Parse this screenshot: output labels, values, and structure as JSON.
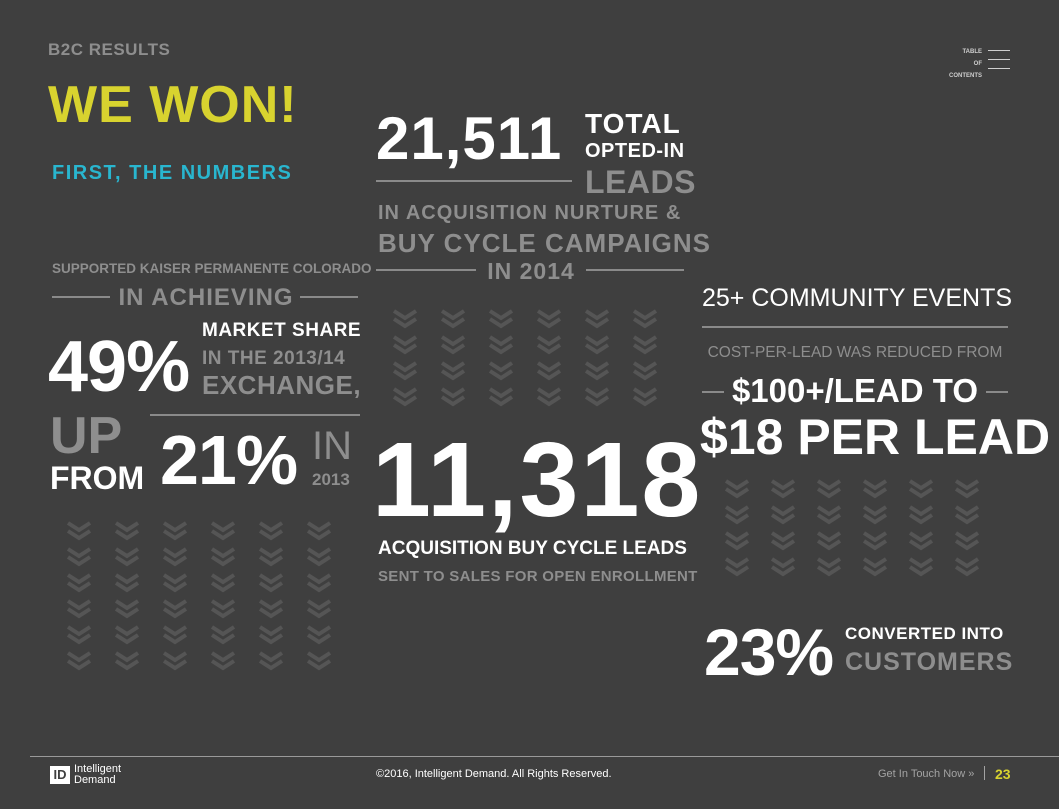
{
  "header": {
    "section": "B2C RESULTS",
    "title": "WE WON!",
    "subtitle": "FIRST, THE NUMBERS"
  },
  "toc": {
    "line1": "TABLE",
    "line2": "OF",
    "line3": "CONTENTS",
    "icon": "menu-lines-icon"
  },
  "left": {
    "supported": "SUPPORTED KAISER PERMANENTE COLORADO",
    "achieving": "IN ACHIEVING",
    "big_percent": "49%",
    "market_share": "MARKET SHARE",
    "in_the": "IN THE 2013/14",
    "exchange": "EXCHANGE,",
    "up": "UP",
    "from": "FROM",
    "prev_percent": "21%",
    "in": "IN",
    "year": "2013"
  },
  "middle": {
    "total_number": "21,511",
    "total": "TOTAL",
    "opted_in": "OPTED-IN",
    "leads": "LEADS",
    "acq_line1": "IN ACQUISITION NURTURE &",
    "acq_line2": "BUY CYCLE CAMPAIGNS",
    "in_year": "IN 2014",
    "buy_cycle_number": "11,318",
    "buy_cycle_label": "ACQUISITION BUY CYCLE LEADS",
    "sent_label": "SENT TO SALES FOR OPEN ENROLLMENT"
  },
  "right": {
    "events": "25+ COMMUNITY EVENTS",
    "cpl": "COST-PER-LEAD WAS REDUCED FROM",
    "from_cost": "$100+/LEAD TO",
    "to_cost": "$18 PER LEAD",
    "converted_percent": "23%",
    "converted_into": "CONVERTED INTO",
    "customers": "CUSTOMERS"
  },
  "footer": {
    "logo_mark": "ID",
    "logo_line1": "Intelligent",
    "logo_line2": "Demand",
    "copyright": "©2016, Intelligent Demand. All Rights Reserved.",
    "cta": "Get In Touch Now »",
    "page_number": "23"
  },
  "colors": {
    "background": "#3f3f3f",
    "accent_yellow": "#d8d32f",
    "accent_cyan": "#29b6cf",
    "muted_gray": "#8e8e8e",
    "chevron": "#555555"
  }
}
